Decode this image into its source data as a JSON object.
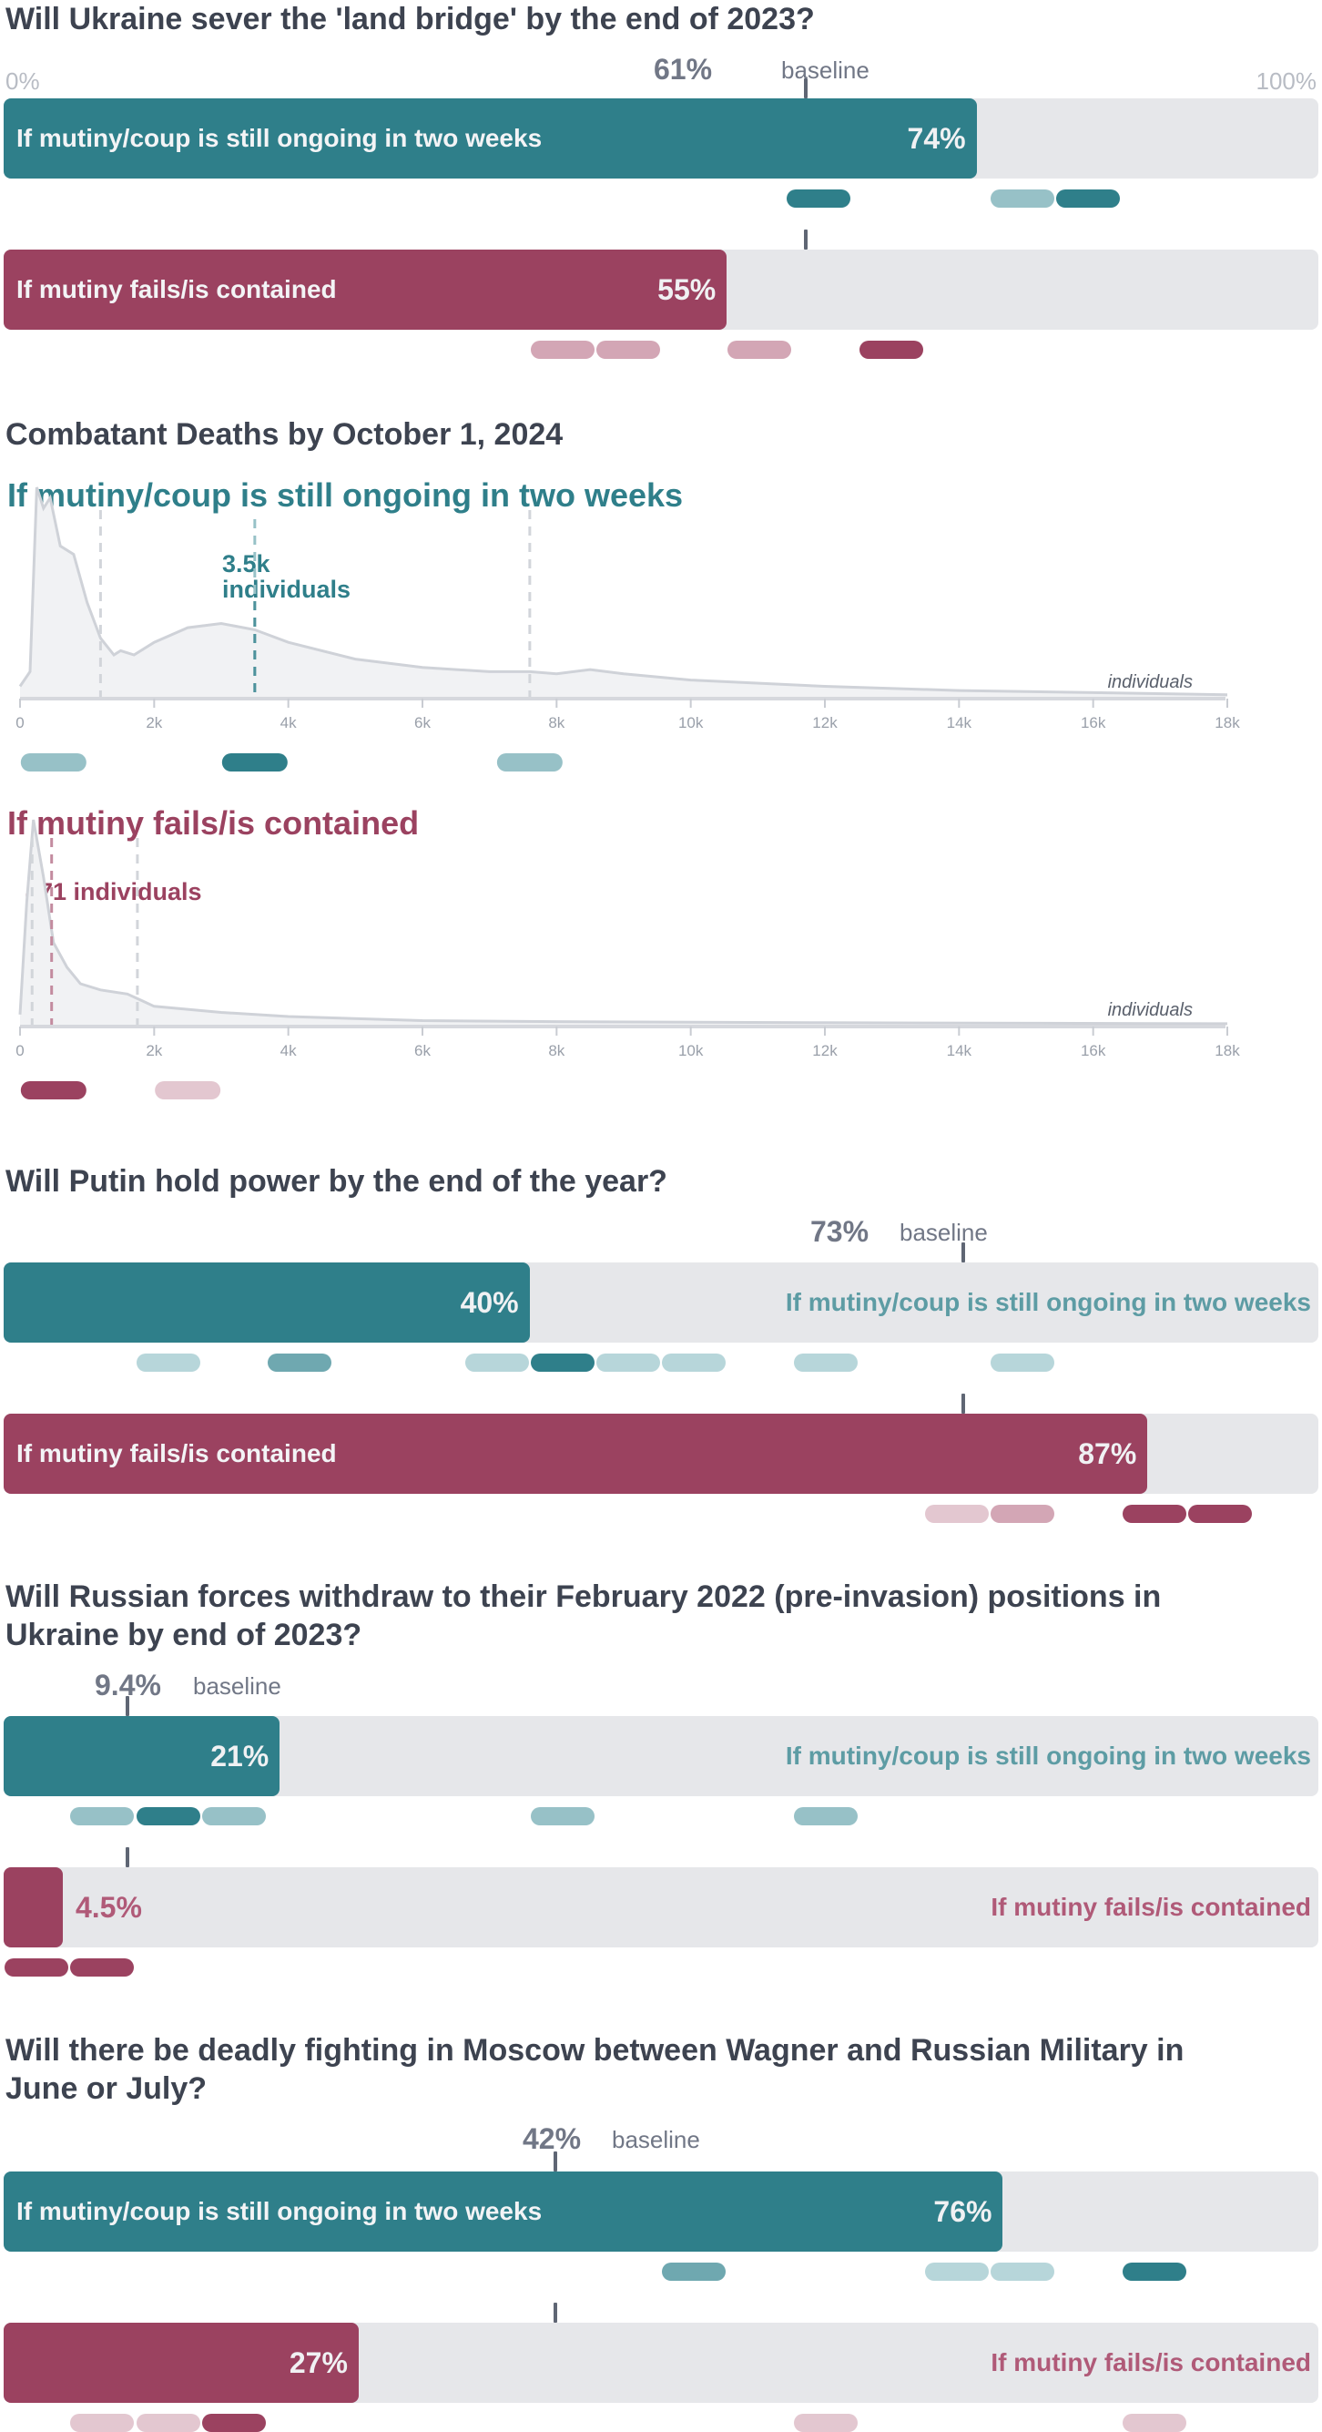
{
  "colors": {
    "teal": "#2f7f8a",
    "teal_mid": "#6fa8b0",
    "teal_light": "#97c1c7",
    "teal_pale": "#b7d6da",
    "wine": "#9b4260",
    "wine_mid": "#c38b9f",
    "wine_light": "#d3a6b5",
    "wine_pale": "#e3c7d0",
    "track": "#e6e7ea",
    "text": "#3d4350",
    "muted": "#717786"
  },
  "q1": {
    "title": "Will Ukraine sever the 'land bridge' by the end of 2023?",
    "scale_min": "0%",
    "scale_max": "100%",
    "baseline_value": "61%",
    "baseline_label": "baseline",
    "baseline": 61,
    "bars": [
      {
        "label": "If mutiny/coup is still ongoing in two weeks",
        "value_text": "74%",
        "value": 74,
        "color": "teal",
        "pills": [
          {
            "pos": 62,
            "shade": "teal"
          },
          {
            "pos": 77.5,
            "shade": "teal_light"
          },
          {
            "pos": 82.5,
            "shade": "teal"
          }
        ]
      },
      {
        "label": "If mutiny fails/is contained",
        "value_text": "55%",
        "value": 55,
        "color": "wine",
        "pills": [
          {
            "pos": 42.5,
            "shade": "wine_light"
          },
          {
            "pos": 47.5,
            "shade": "wine_light"
          },
          {
            "pos": 57.5,
            "shade": "wine_light"
          },
          {
            "pos": 67.5,
            "shade": "wine"
          }
        ]
      }
    ]
  },
  "q2": {
    "title": "Combatant Deaths by October 1, 2024",
    "panels": [
      {
        "subtitle": "If mutiny/coup is still ongoing in two weeks",
        "color": "teal",
        "median_label_1": "3.5k",
        "median_label_2": "individuals",
        "median": 3500,
        "quantiles": [
          1200,
          7600
        ],
        "unit_label": "individuals",
        "ticks": [
          "0",
          "2k",
          "4k",
          "6k",
          "8k",
          "10k",
          "12k",
          "14k",
          "16k",
          "18k"
        ],
        "xlim": [
          0,
          18000
        ],
        "curve": [
          [
            0,
            0.05
          ],
          [
            150,
            0.12
          ],
          [
            250,
            1.0
          ],
          [
            350,
            0.9
          ],
          [
            450,
            0.95
          ],
          [
            600,
            0.72
          ],
          [
            800,
            0.68
          ],
          [
            1000,
            0.45
          ],
          [
            1200,
            0.28
          ],
          [
            1400,
            0.2
          ],
          [
            1500,
            0.22
          ],
          [
            1700,
            0.2
          ],
          [
            2000,
            0.26
          ],
          [
            2500,
            0.33
          ],
          [
            3000,
            0.35
          ],
          [
            3500,
            0.32
          ],
          [
            4000,
            0.26
          ],
          [
            5000,
            0.18
          ],
          [
            6000,
            0.14
          ],
          [
            7000,
            0.12
          ],
          [
            7600,
            0.12
          ],
          [
            8000,
            0.11
          ],
          [
            8500,
            0.13
          ],
          [
            9000,
            0.11
          ],
          [
            10000,
            0.08
          ],
          [
            12000,
            0.05
          ],
          [
            14000,
            0.03
          ],
          [
            16000,
            0.02
          ],
          [
            18000,
            0.01
          ]
        ],
        "pills": [
          {
            "pos": 500,
            "shade": "teal_light"
          },
          {
            "pos": 3500,
            "shade": "teal"
          },
          {
            "pos": 7600,
            "shade": "teal_light"
          }
        ]
      },
      {
        "subtitle": "If mutiny fails/is contained",
        "color": "wine",
        "median_label_1": "471 individuals",
        "median_label_2": "",
        "median": 471,
        "quantiles": [
          180,
          1750
        ],
        "unit_label": "individuals",
        "ticks": [
          "0",
          "2k",
          "4k",
          "6k",
          "8k",
          "10k",
          "12k",
          "14k",
          "16k",
          "18k"
        ],
        "xlim": [
          0,
          18000
        ],
        "curve": [
          [
            0,
            0.05
          ],
          [
            100,
            0.6
          ],
          [
            200,
            1.0
          ],
          [
            350,
            0.72
          ],
          [
            500,
            0.4
          ],
          [
            700,
            0.28
          ],
          [
            900,
            0.2
          ],
          [
            1200,
            0.17
          ],
          [
            1600,
            0.15
          ],
          [
            1800,
            0.12
          ],
          [
            2000,
            0.09
          ],
          [
            3000,
            0.06
          ],
          [
            4000,
            0.04
          ],
          [
            6000,
            0.02
          ],
          [
            8000,
            0.015
          ],
          [
            12000,
            0.01
          ],
          [
            18000,
            0.005
          ]
        ],
        "pills": [
          {
            "pos": 500,
            "shade": "wine"
          },
          {
            "pos": 2500,
            "shade": "wine_pale"
          }
        ]
      }
    ]
  },
  "q3": {
    "title": "Will Putin hold power by the end of the year?",
    "baseline_value": "73%",
    "baseline_label": "baseline",
    "baseline": 73,
    "bars": [
      {
        "label": "If mutiny/coup is still ongoing in two weeks",
        "value_text": "40%",
        "value": 40,
        "color": "teal",
        "pills": [
          {
            "pos": 12.5,
            "shade": "teal_pale"
          },
          {
            "pos": 22.5,
            "shade": "teal_mid"
          },
          {
            "pos": 37.5,
            "shade": "teal_pale"
          },
          {
            "pos": 42.5,
            "shade": "teal"
          },
          {
            "pos": 47.5,
            "shade": "teal_pale"
          },
          {
            "pos": 52.5,
            "shade": "teal_pale"
          },
          {
            "pos": 62.5,
            "shade": "teal_pale"
          },
          {
            "pos": 77.5,
            "shade": "teal_pale"
          }
        ]
      },
      {
        "label": "If mutiny fails/is contained",
        "value_text": "87%",
        "value": 87,
        "color": "wine",
        "pills": [
          {
            "pos": 72.5,
            "shade": "wine_pale"
          },
          {
            "pos": 77.5,
            "shade": "wine_light"
          },
          {
            "pos": 87.5,
            "shade": "wine"
          },
          {
            "pos": 92.5,
            "shade": "wine"
          }
        ]
      }
    ]
  },
  "q4": {
    "title_line1": "Will Russian forces withdraw to their February 2022 (pre-invasion) positions in",
    "title_line2": "Ukraine by end of 2023?",
    "baseline_value": "9.4%",
    "baseline_label": "baseline",
    "baseline": 9.4,
    "bars": [
      {
        "label": "If mutiny/coup is still ongoing in two weeks",
        "value_text": "21%",
        "value": 21,
        "color": "teal",
        "pills": [
          {
            "pos": 7.5,
            "shade": "teal_light"
          },
          {
            "pos": 12.5,
            "shade": "teal"
          },
          {
            "pos": 17.5,
            "shade": "teal_light"
          },
          {
            "pos": 42.5,
            "shade": "teal_light"
          },
          {
            "pos": 62.5,
            "shade": "teal_light"
          }
        ]
      },
      {
        "label": "If mutiny fails/is contained",
        "value_text": "4.5%",
        "value": 4.5,
        "color": "wine",
        "pills": [
          {
            "pos": 2.5,
            "shade": "wine"
          },
          {
            "pos": 7.5,
            "shade": "wine"
          }
        ]
      }
    ]
  },
  "q5": {
    "title_line1": "Will there be deadly fighting in Moscow between Wagner and Russian Military in",
    "title_line2": "June or July?",
    "baseline_value": "42%",
    "baseline_label": "baseline",
    "baseline": 42,
    "bars": [
      {
        "label": "If mutiny/coup is still ongoing in two weeks",
        "value_text": "76%",
        "value": 76,
        "color": "teal",
        "pills": [
          {
            "pos": 52.5,
            "shade": "teal_mid"
          },
          {
            "pos": 72.5,
            "shade": "teal_pale"
          },
          {
            "pos": 77.5,
            "shade": "teal_pale"
          },
          {
            "pos": 87.5,
            "shade": "teal"
          }
        ]
      },
      {
        "label": "If mutiny fails/is contained",
        "value_text": "27%",
        "value": 27,
        "color": "wine",
        "pills": [
          {
            "pos": 7.5,
            "shade": "wine_pale"
          },
          {
            "pos": 12.5,
            "shade": "wine_pale"
          },
          {
            "pos": 17.5,
            "shade": "wine"
          },
          {
            "pos": 62.5,
            "shade": "wine_pale"
          },
          {
            "pos": 87.5,
            "shade": "wine_pale"
          }
        ]
      }
    ]
  },
  "chart_data": [
    {
      "type": "bar",
      "title": "Will Ukraine sever the 'land bridge' by the end of 2023?",
      "ylim": [
        0,
        100
      ],
      "baseline": 61,
      "categories": [
        "If mutiny/coup is still ongoing in two weeks",
        "If mutiny fails/is contained"
      ],
      "values": [
        74,
        55
      ]
    },
    {
      "type": "area",
      "title": "Combatant Deaths by October 1, 2024",
      "series": [
        {
          "name": "If mutiny/coup is still ongoing in two weeks",
          "median": 3500
        },
        {
          "name": "If mutiny fails/is contained",
          "median": 471
        }
      ],
      "xlabel": "individuals",
      "xlim": [
        0,
        18000
      ]
    },
    {
      "type": "bar",
      "title": "Will Putin hold power by the end of the year?",
      "ylim": [
        0,
        100
      ],
      "baseline": 73,
      "categories": [
        "If mutiny/coup is still ongoing in two weeks",
        "If mutiny fails/is contained"
      ],
      "values": [
        40,
        87
      ]
    },
    {
      "type": "bar",
      "title": "Will Russian forces withdraw to their February 2022 (pre-invasion) positions in Ukraine by end of 2023?",
      "ylim": [
        0,
        100
      ],
      "baseline": 9.4,
      "categories": [
        "If mutiny/coup is still ongoing in two weeks",
        "If mutiny fails/is contained"
      ],
      "values": [
        21,
        4.5
      ]
    },
    {
      "type": "bar",
      "title": "Will there be deadly fighting in Moscow between Wagner and Russian Military in June or July?",
      "ylim": [
        0,
        100
      ],
      "baseline": 42,
      "categories": [
        "If mutiny/coup is still ongoing in two weeks",
        "If mutiny fails/is contained"
      ],
      "values": [
        76,
        27
      ]
    }
  ]
}
